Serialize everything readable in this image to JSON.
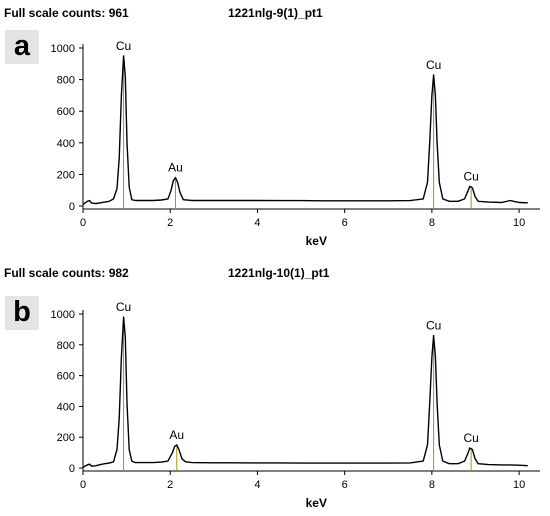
{
  "chart_data": [
    {
      "type": "line",
      "panel_label": "a",
      "counts_text": "Full scale counts: 961",
      "sample_name": "1221nlg-9(1)_pt1",
      "xlabel": "keV",
      "xlim": [
        0,
        10.25
      ],
      "ylim": [
        0,
        1000
      ],
      "xticks": [
        0,
        2,
        4,
        6,
        8,
        10
      ],
      "yticks": [
        0,
        200,
        400,
        600,
        800,
        1000
      ],
      "colors": {
        "spectrum": "#000000",
        "peak_marker": "#a89600"
      },
      "peaks": [
        {
          "label": "Cu",
          "energy": 0.93,
          "counts": 950
        },
        {
          "label": "Au",
          "energy": 2.12,
          "counts": 180
        },
        {
          "label": "Cu",
          "energy": 8.04,
          "counts": 830
        },
        {
          "label": "Cu",
          "energy": 8.9,
          "counts": 125
        }
      ],
      "series": [
        {
          "points": [
            [
              0.0,
              10
            ],
            [
              0.1,
              30
            ],
            [
              0.15,
              35
            ],
            [
              0.2,
              18
            ],
            [
              0.3,
              16
            ],
            [
              0.4,
              20
            ],
            [
              0.5,
              25
            ],
            [
              0.6,
              30
            ],
            [
              0.7,
              45
            ],
            [
              0.78,
              110
            ],
            [
              0.83,
              300
            ],
            [
              0.88,
              700
            ],
            [
              0.93,
              950
            ],
            [
              0.97,
              820
            ],
            [
              1.01,
              400
            ],
            [
              1.06,
              120
            ],
            [
              1.12,
              40
            ],
            [
              1.2,
              35
            ],
            [
              1.4,
              35
            ],
            [
              1.6,
              35
            ],
            [
              1.8,
              38
            ],
            [
              1.95,
              45
            ],
            [
              2.02,
              100
            ],
            [
              2.07,
              160
            ],
            [
              2.12,
              180
            ],
            [
              2.17,
              150
            ],
            [
              2.22,
              90
            ],
            [
              2.3,
              40
            ],
            [
              2.5,
              35
            ],
            [
              3.0,
              35
            ],
            [
              3.5,
              35
            ],
            [
              4.0,
              35
            ],
            [
              4.5,
              34
            ],
            [
              5.0,
              34
            ],
            [
              5.5,
              33
            ],
            [
              6.0,
              33
            ],
            [
              6.5,
              33
            ],
            [
              7.0,
              33
            ],
            [
              7.5,
              34
            ],
            [
              7.8,
              45
            ],
            [
              7.9,
              150
            ],
            [
              7.95,
              400
            ],
            [
              8.0,
              700
            ],
            [
              8.04,
              830
            ],
            [
              8.08,
              700
            ],
            [
              8.12,
              400
            ],
            [
              8.17,
              150
            ],
            [
              8.25,
              45
            ],
            [
              8.4,
              30
            ],
            [
              8.6,
              30
            ],
            [
              8.75,
              45
            ],
            [
              8.82,
              90
            ],
            [
              8.87,
              125
            ],
            [
              8.93,
              115
            ],
            [
              8.99,
              60
            ],
            [
              9.06,
              30
            ],
            [
              9.3,
              25
            ],
            [
              9.6,
              22
            ],
            [
              9.72,
              30
            ],
            [
              9.8,
              35
            ],
            [
              9.9,
              28
            ],
            [
              10.0,
              22
            ],
            [
              10.2,
              20
            ]
          ]
        }
      ]
    },
    {
      "type": "line",
      "panel_label": "b",
      "counts_text": "Full scale counts: 982",
      "sample_name": "1221nlg-10(1)_pt1",
      "xlabel": "keV",
      "xlim": [
        0,
        10.25
      ],
      "ylim": [
        0,
        1000
      ],
      "xticks": [
        0,
        2,
        4,
        6,
        8,
        10
      ],
      "yticks": [
        0,
        200,
        400,
        600,
        800,
        1000
      ],
      "colors": {
        "spectrum": "#000000",
        "peak_marker": "#a89600"
      },
      "peaks": [
        {
          "label": "Cu",
          "energy": 0.93,
          "counts": 980
        },
        {
          "label": "Au",
          "energy": 2.15,
          "counts": 150
        },
        {
          "label": "Cu",
          "energy": 8.04,
          "counts": 860
        },
        {
          "label": "Cu",
          "energy": 8.9,
          "counts": 130
        }
      ],
      "series": [
        {
          "points": [
            [
              0.0,
              5
            ],
            [
              0.1,
              20
            ],
            [
              0.15,
              25
            ],
            [
              0.2,
              12
            ],
            [
              0.3,
              15
            ],
            [
              0.4,
              22
            ],
            [
              0.5,
              28
            ],
            [
              0.6,
              32
            ],
            [
              0.7,
              40
            ],
            [
              0.78,
              120
            ],
            [
              0.83,
              320
            ],
            [
              0.88,
              720
            ],
            [
              0.93,
              980
            ],
            [
              0.97,
              850
            ],
            [
              1.01,
              420
            ],
            [
              1.06,
              120
            ],
            [
              1.12,
              45
            ],
            [
              1.2,
              35
            ],
            [
              1.4,
              35
            ],
            [
              1.6,
              35
            ],
            [
              1.8,
              38
            ],
            [
              1.95,
              45
            ],
            [
              2.05,
              100
            ],
            [
              2.1,
              140
            ],
            [
              2.15,
              150
            ],
            [
              2.2,
              120
            ],
            [
              2.27,
              60
            ],
            [
              2.35,
              40
            ],
            [
              2.5,
              35
            ],
            [
              3.0,
              34
            ],
            [
              3.5,
              34
            ],
            [
              4.0,
              33
            ],
            [
              4.5,
              33
            ],
            [
              5.0,
              32
            ],
            [
              5.5,
              32
            ],
            [
              6.0,
              32
            ],
            [
              6.5,
              32
            ],
            [
              7.0,
              32
            ],
            [
              7.5,
              33
            ],
            [
              7.8,
              45
            ],
            [
              7.9,
              150
            ],
            [
              7.95,
              420
            ],
            [
              8.0,
              720
            ],
            [
              8.04,
              860
            ],
            [
              8.08,
              720
            ],
            [
              8.12,
              420
            ],
            [
              8.17,
              150
            ],
            [
              8.25,
              45
            ],
            [
              8.4,
              28
            ],
            [
              8.6,
              28
            ],
            [
              8.75,
              45
            ],
            [
              8.82,
              90
            ],
            [
              8.87,
              130
            ],
            [
              8.93,
              120
            ],
            [
              8.99,
              60
            ],
            [
              9.06,
              28
            ],
            [
              9.3,
              22
            ],
            [
              9.6,
              20
            ],
            [
              9.8,
              20
            ],
            [
              10.0,
              18
            ],
            [
              10.2,
              15
            ]
          ]
        }
      ]
    }
  ]
}
